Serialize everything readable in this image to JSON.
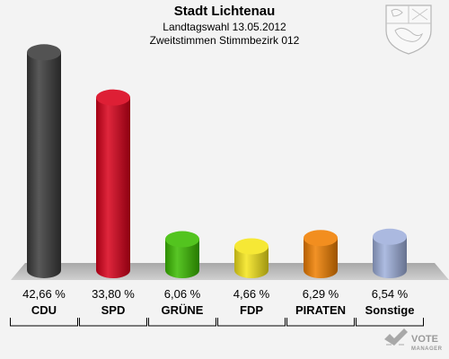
{
  "header": {
    "title": "Stadt Lichtenau",
    "subtitle1": "Landtagswahl 13.05.2012",
    "subtitle2": "Zweitstimmen Stimmbezirk 012"
  },
  "chart_data": {
    "type": "bar",
    "title": "Stadt Lichtenau",
    "categories": [
      "CDU",
      "SPD",
      "GRÜNE",
      "FDP",
      "PIRATEN",
      "Sonstige"
    ],
    "values": [
      42.66,
      33.8,
      6.06,
      4.66,
      6.29,
      6.54
    ],
    "value_labels": [
      "42,66 %",
      "33,80 %",
      "6,06 %",
      "4,66 %",
      "6,29 %",
      "6,54 %"
    ],
    "colors": [
      "#3c3c3c",
      "#d9001a",
      "#3cbc00",
      "#f5e51a",
      "#f07f00",
      "#9fb0dc"
    ],
    "grid": false,
    "legend": "none"
  },
  "logo": {
    "text": "VOTE",
    "subtext": "MANAGER",
    "crest": "coat-of-arms-icon"
  }
}
